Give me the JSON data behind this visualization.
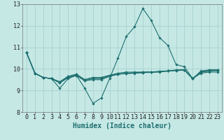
{
  "xlabel": "Humidex (Indice chaleur)",
  "xlim": [
    -0.5,
    23.5
  ],
  "ylim": [
    8,
    13
  ],
  "yticks": [
    8,
    9,
    10,
    11,
    12,
    13
  ],
  "xticks": [
    0,
    1,
    2,
    3,
    4,
    5,
    6,
    7,
    8,
    9,
    10,
    11,
    12,
    13,
    14,
    15,
    16,
    17,
    18,
    19,
    20,
    21,
    22,
    23
  ],
  "bg_color": "#c5e8e5",
  "grid_color": "#aad4d0",
  "line_color": "#1e7070",
  "lines": [
    [
      10.75,
      9.8,
      9.6,
      9.55,
      9.1,
      9.55,
      9.7,
      9.1,
      8.4,
      8.65,
      9.55,
      10.5,
      11.5,
      11.95,
      12.8,
      12.25,
      11.45,
      11.1,
      10.2,
      10.1,
      9.55,
      9.8,
      9.85,
      9.85
    ],
    [
      10.75,
      9.8,
      9.6,
      9.55,
      9.4,
      9.65,
      9.75,
      9.5,
      9.6,
      9.6,
      9.7,
      9.8,
      9.85,
      9.85,
      9.85,
      9.85,
      9.85,
      9.9,
      9.95,
      9.95,
      9.55,
      9.9,
      9.95,
      9.95
    ],
    [
      10.75,
      9.8,
      9.6,
      9.55,
      9.4,
      9.65,
      9.75,
      9.5,
      9.6,
      9.6,
      9.7,
      9.75,
      9.8,
      9.82,
      9.85,
      9.86,
      9.88,
      9.9,
      9.92,
      9.94,
      9.55,
      9.88,
      9.95,
      9.95
    ],
    [
      10.75,
      9.8,
      9.6,
      9.55,
      9.35,
      9.6,
      9.7,
      9.45,
      9.5,
      9.5,
      9.65,
      9.75,
      9.78,
      9.8,
      9.82,
      9.84,
      9.87,
      9.9,
      9.93,
      9.95,
      9.55,
      9.85,
      9.9,
      9.92
    ],
    [
      10.75,
      9.8,
      9.6,
      9.55,
      9.35,
      9.6,
      9.7,
      9.45,
      9.55,
      9.55,
      9.68,
      9.76,
      9.79,
      9.81,
      9.83,
      9.85,
      9.88,
      9.91,
      9.94,
      9.96,
      9.55,
      9.85,
      9.92,
      9.94
    ]
  ],
  "tick_fontsize": 6.0,
  "xlabel_fontsize": 7.0
}
